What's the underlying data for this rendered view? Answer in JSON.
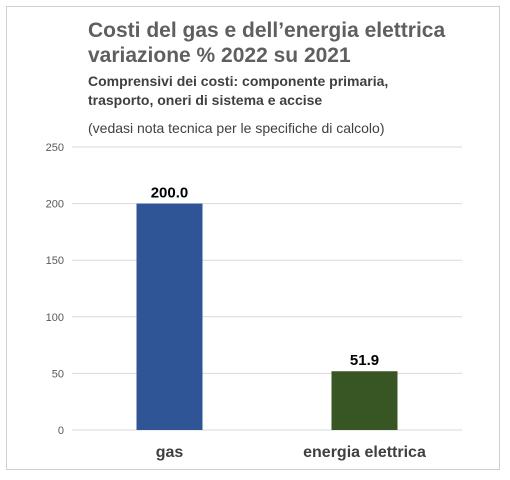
{
  "chart_data": {
    "type": "bar",
    "title": "Costi del gas e dell’energia elettrica variazione % 2022 su 2021",
    "title_lines": [
      "Costi del gas e dell’energia elettrica",
      "variazione % 2022 su 2021"
    ],
    "subtitle_lines": [
      "Comprensivi dei costi: componente primaria,",
      "trasporto, oneri di sistema e accise"
    ],
    "note": "(vedasi nota tecnica per le specifiche di calcolo)",
    "categories": [
      "gas",
      "energia elettrica"
    ],
    "values": [
      200.0,
      51.9
    ],
    "data_labels": [
      "200.0",
      "51.9"
    ],
    "colors": [
      "#2f5597",
      "#375623"
    ],
    "ylim": [
      0,
      250
    ],
    "yticks": [
      0,
      50,
      100,
      150,
      200,
      250
    ],
    "grid": true,
    "legend": "none"
  }
}
